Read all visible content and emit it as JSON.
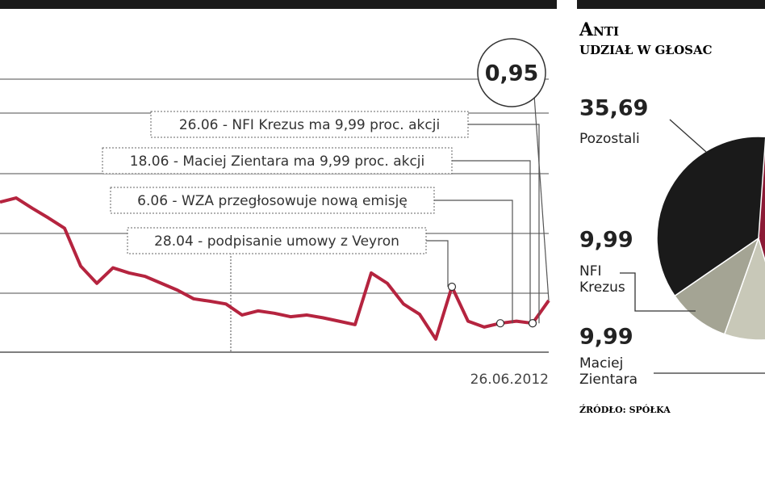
{
  "chart_data": [
    {
      "type": "line",
      "categories": [
        null,
        null,
        null,
        null,
        null,
        null,
        null,
        null,
        null,
        null,
        null,
        null,
        null,
        null,
        null,
        null,
        null,
        null,
        null,
        null,
        null,
        null,
        null,
        null,
        null,
        null,
        null,
        null,
        null,
        null,
        null,
        null,
        null,
        null,
        "26.06.2012"
      ],
      "series": [
        {
          "color": "#b5243f",
          "values": [
            1.236,
            1.248,
            1.218,
            1.19,
            1.16,
            1.05,
            1.0,
            1.045,
            1.03,
            1.02,
            1.0,
            0.98,
            0.955,
            0.948,
            0.94,
            0.908,
            0.92,
            0.913,
            0.903,
            0.908,
            0.9,
            0.89,
            0.88,
            1.03,
            1.0,
            0.94,
            0.91,
            0.838,
            0.99,
            0.89,
            0.873,
            0.884,
            0.89,
            0.884,
            0.95
          ],
          "value_labels": [
            null,
            null,
            null,
            null,
            null,
            null,
            null,
            null,
            null,
            null,
            null,
            null,
            null,
            null,
            null,
            null,
            null,
            null,
            null,
            null,
            null,
            null,
            null,
            null,
            null,
            null,
            null,
            null,
            null,
            null,
            null,
            null,
            null,
            null,
            "0,95"
          ]
        }
      ],
      "ylim": [
        0.8,
        1.6
      ],
      "annotations": [
        "26.06 - NFI Krezus ma 9,99 proc. akcji",
        "18.06 - Maciej Zientara ma 9,99 proc. akcji",
        "6.06 - WZA przegłosowuje nową emisję",
        "28.04 - podpisanie umowy z Veyron"
      ]
    },
    {
      "type": "pie",
      "title": "Anti",
      "subtitle": "UDZIAŁ W GŁOSAC",
      "source": "ŹRÓDŁO: SPÓŁKA",
      "categories": [
        "Pozostali",
        "NFI\nKrezus",
        "Maciej\nZientara"
      ],
      "values": [
        35.69,
        9.99,
        9.99
      ],
      "value_labels": [
        "35,69",
        "9,99",
        "9,99"
      ],
      "colors": [
        "#1a1a1a",
        "#a4a494",
        "#c8c8b8"
      ]
    }
  ]
}
